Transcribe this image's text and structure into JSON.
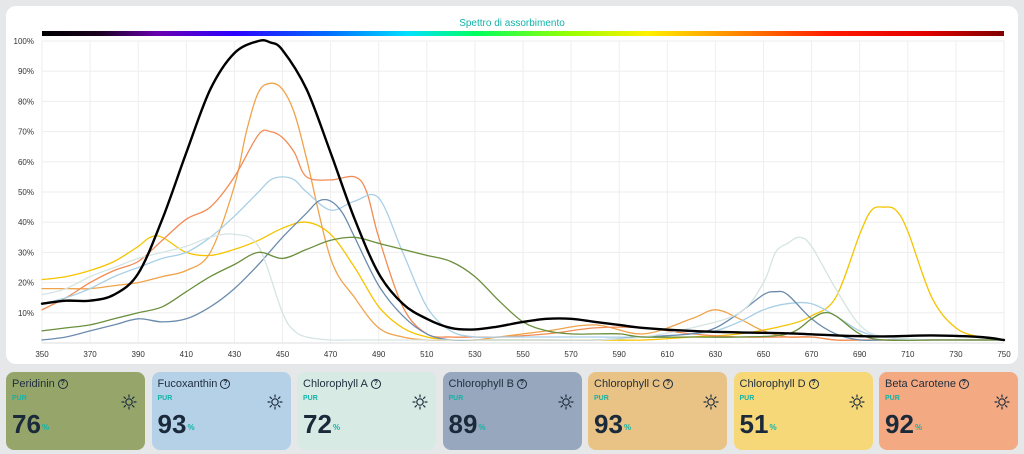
{
  "chart_data": {
    "type": "line",
    "title": "Spettro di assorbimento",
    "xlim": [
      350,
      750
    ],
    "ylim": [
      0,
      100
    ],
    "x_ticks": [
      350,
      370,
      390,
      410,
      430,
      450,
      470,
      490,
      510,
      530,
      550,
      570,
      590,
      610,
      630,
      650,
      670,
      690,
      710,
      730,
      750
    ],
    "y_ticks": [
      "10%",
      "20%",
      "30%",
      "40%",
      "50%",
      "60%",
      "70%",
      "80%",
      "90%",
      "100%"
    ],
    "grid": true,
    "legend": "none",
    "series": [
      {
        "color": "#f5c400",
        "x": [
          350,
          360,
          370,
          380,
          390,
          395,
          400,
          410,
          420,
          430,
          440,
          450,
          460,
          470,
          480,
          490,
          500,
          510,
          520,
          530,
          540,
          560,
          580,
          600,
          620,
          640,
          660,
          670,
          680,
          690,
          695,
          700,
          705,
          710,
          720,
          730,
          740,
          750
        ],
        "y": [
          21,
          22,
          24,
          27,
          32,
          35,
          35,
          30,
          29,
          31,
          34,
          38,
          40,
          36,
          25,
          12,
          5,
          2,
          1,
          1,
          1,
          1,
          1,
          1,
          2,
          3,
          6,
          9,
          15,
          36,
          44,
          45,
          44,
          37,
          15,
          5,
          2,
          1
        ]
      },
      {
        "color": "#f0a34a",
        "x": [
          350,
          360,
          370,
          380,
          390,
          400,
          410,
          420,
          430,
          435,
          440,
          445,
          450,
          455,
          460,
          470,
          480,
          490,
          500,
          510,
          520,
          530,
          540,
          560,
          580,
          600,
          620,
          630,
          640,
          650,
          660,
          670,
          680,
          690,
          700,
          710,
          720,
          730,
          740,
          750
        ],
        "y": [
          18,
          18,
          18,
          19,
          20,
          22,
          24,
          30,
          52,
          70,
          83,
          86,
          84,
          76,
          61,
          28,
          15,
          5,
          2,
          1,
          1,
          1,
          2,
          4,
          6,
          3,
          8,
          11,
          8,
          4,
          2,
          2,
          1,
          1,
          1,
          1,
          1,
          1,
          1,
          1
        ]
      },
      {
        "color": "#f28c55",
        "x": [
          350,
          360,
          370,
          380,
          390,
          400,
          410,
          420,
          430,
          440,
          445,
          450,
          455,
          460,
          470,
          480,
          485,
          490,
          500,
          510,
          520,
          530,
          540,
          560,
          580,
          600,
          620,
          640,
          660,
          670,
          680,
          690,
          700,
          720,
          740,
          750
        ],
        "y": [
          11,
          15,
          20,
          24,
          27,
          34,
          41,
          45,
          55,
          69,
          70,
          68,
          63,
          55,
          54,
          55,
          50,
          35,
          12,
          3,
          2,
          2,
          2,
          3,
          5,
          5,
          3,
          2,
          2,
          2,
          1,
          1,
          1,
          1,
          1,
          1
        ]
      },
      {
        "color": "#a9cfe6",
        "x": [
          350,
          360,
          370,
          380,
          390,
          400,
          410,
          420,
          430,
          440,
          445,
          450,
          455,
          460,
          470,
          480,
          490,
          500,
          510,
          520,
          530,
          540,
          560,
          580,
          600,
          620,
          630,
          640,
          650,
          660,
          670,
          680,
          690,
          700,
          720,
          740,
          750
        ],
        "y": [
          13,
          15,
          18,
          22,
          25,
          28,
          30,
          35,
          42,
          50,
          54,
          55,
          54,
          50,
          44,
          47,
          48,
          30,
          12,
          4,
          2,
          2,
          2,
          2,
          2,
          3,
          4,
          7,
          11,
          13,
          13,
          9,
          4,
          2,
          1,
          1,
          1
        ]
      },
      {
        "color": "#6b8cae",
        "x": [
          350,
          360,
          370,
          380,
          390,
          400,
          410,
          420,
          430,
          440,
          450,
          460,
          465,
          470,
          475,
          480,
          490,
          500,
          510,
          520,
          530,
          540,
          560,
          580,
          600,
          620,
          630,
          640,
          650,
          655,
          660,
          670,
          680,
          690,
          700,
          720,
          740,
          750
        ],
        "y": [
          1,
          2,
          4,
          6,
          8,
          7,
          8,
          12,
          18,
          26,
          35,
          43,
          47,
          47,
          43,
          35,
          19,
          9,
          3,
          1,
          1,
          1,
          1,
          1,
          2,
          3,
          5,
          10,
          16,
          17,
          16,
          8,
          3,
          1,
          1,
          1,
          1,
          1
        ]
      },
      {
        "color": "#d6e4e4",
        "x": [
          350,
          360,
          370,
          380,
          390,
          400,
          410,
          420,
          430,
          440,
          450,
          455,
          460,
          470,
          480,
          500,
          520,
          540,
          560,
          580,
          600,
          620,
          640,
          650,
          655,
          660,
          665,
          670,
          680,
          690,
          700,
          720,
          740,
          750
        ],
        "y": [
          16,
          18,
          22,
          25,
          28,
          30,
          32,
          35,
          36,
          32,
          10,
          4,
          2,
          1,
          1,
          1,
          1,
          1,
          1,
          1,
          2,
          5,
          10,
          20,
          30,
          33,
          35,
          32,
          18,
          6,
          2,
          1,
          1,
          1
        ]
      },
      {
        "color": "#6a8f3c",
        "x": [
          350,
          360,
          370,
          380,
          390,
          400,
          410,
          420,
          430,
          440,
          450,
          460,
          470,
          480,
          490,
          500,
          510,
          520,
          530,
          540,
          550,
          560,
          570,
          580,
          590,
          600,
          620,
          640,
          660,
          670,
          675,
          680,
          690,
          700,
          720,
          740,
          750
        ],
        "y": [
          4,
          5,
          6,
          8,
          10,
          12,
          17,
          22,
          26,
          30,
          28,
          31,
          34,
          35,
          33,
          31,
          29,
          27,
          22,
          14,
          7,
          4,
          3,
          3,
          3,
          2,
          2,
          2,
          3,
          8,
          10,
          9,
          3,
          1,
          1,
          1,
          1
        ]
      },
      {
        "color": "#000000",
        "x": [
          350,
          360,
          370,
          380,
          390,
          400,
          410,
          420,
          430,
          440,
          445,
          450,
          460,
          470,
          480,
          490,
          500,
          510,
          520,
          530,
          540,
          550,
          560,
          570,
          580,
          590,
          600,
          620,
          640,
          660,
          680,
          700,
          720,
          740,
          750
        ],
        "y": [
          13,
          14,
          14,
          16,
          23,
          41,
          63,
          84,
          96,
          100,
          99.5,
          97,
          84,
          63,
          41,
          23,
          13,
          8,
          5,
          4.5,
          5.5,
          7,
          8,
          8,
          7,
          6,
          5,
          4,
          3.5,
          3.2,
          2.5,
          2.2,
          2.5,
          2,
          1
        ]
      }
    ]
  },
  "cards": [
    {
      "name": "Peridinin",
      "sub": "PUR",
      "value": "76",
      "unit": "%",
      "bg": "#96a66b"
    },
    {
      "name": "Fucoxanthin",
      "sub": "PUR",
      "value": "93",
      "unit": "%",
      "bg": "#b5d1e8"
    },
    {
      "name": "Chlorophyll A",
      "sub": "PUR",
      "value": "72",
      "unit": "%",
      "bg": "#d8eae4"
    },
    {
      "name": "Chlorophyll B",
      "sub": "PUR",
      "value": "89",
      "unit": "%",
      "bg": "#97a8be"
    },
    {
      "name": "Chlorophyll C",
      "sub": "PUR",
      "value": "93",
      "unit": "%",
      "bg": "#e8c385"
    },
    {
      "name": "Chlorophyll D",
      "sub": "PUR",
      "value": "51",
      "unit": "%",
      "bg": "#f6d878"
    },
    {
      "name": "Beta Carotene",
      "sub": "PUR",
      "value": "92",
      "unit": "%",
      "bg": "#f3a982"
    }
  ],
  "icons": {
    "help": "question-circle-icon",
    "light": "sun-icon"
  }
}
